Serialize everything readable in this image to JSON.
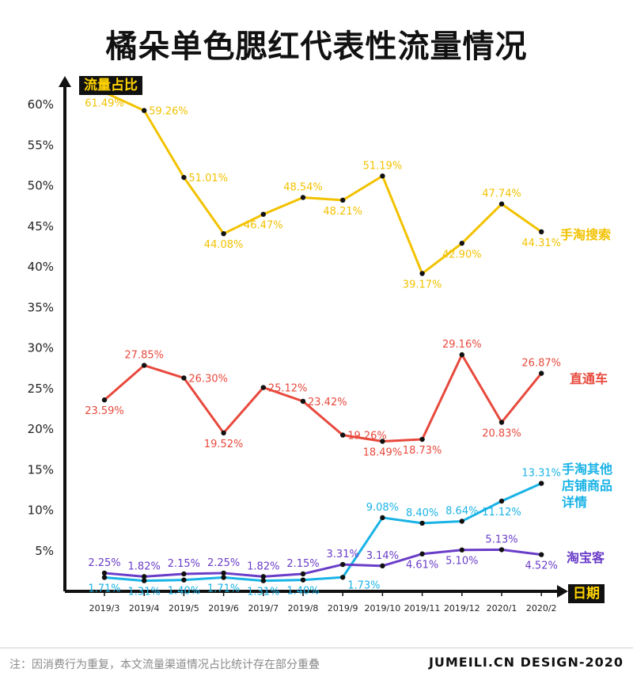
{
  "chart_data": {
    "type": "line",
    "title": "橘朵单色腮红代表性流量情况",
    "ylabel": "流量占比",
    "xlabel": "日期",
    "ylim": [
      0,
      63
    ],
    "yticks": [
      "5%",
      "10%",
      "15%",
      "20%",
      "25%",
      "30%",
      "35%",
      "40%",
      "45%",
      "50%",
      "55%",
      "60%"
    ],
    "ytick_values": [
      5,
      10,
      15,
      20,
      25,
      30,
      35,
      40,
      45,
      50,
      55,
      60
    ],
    "categories": [
      "2019/3",
      "2019/4",
      "2019/5",
      "2019/6",
      "2019/7",
      "2019/8",
      "2019/9",
      "2019/10",
      "2019/11",
      "2019/12",
      "2020/1",
      "2020/2"
    ],
    "series": [
      {
        "name": "手淘搜索",
        "color": "#f2c200",
        "values": [
          61.49,
          59.26,
          51.01,
          44.08,
          46.47,
          48.54,
          48.21,
          51.19,
          39.17,
          42.9,
          47.74,
          44.31
        ],
        "labels": [
          "61.49%",
          "59.26%",
          "51.01%",
          "44.08%",
          "46.47%",
          "48.54%",
          "48.21%",
          "51.19%",
          "39.17%",
          "42.90%",
          "47.74%",
          "44.31%"
        ],
        "label_pos": [
          "below",
          "right",
          "right",
          "below",
          "below",
          "above",
          "below",
          "above",
          "below",
          "below",
          "above",
          "below"
        ]
      },
      {
        "name": "直通车",
        "color": "#e8493d",
        "values": [
          23.59,
          27.85,
          26.3,
          19.52,
          25.12,
          23.42,
          19.26,
          18.49,
          18.73,
          29.16,
          20.83,
          26.87
        ],
        "labels": [
          "23.59%",
          "27.85%",
          "26.30%",
          "19.52%",
          "25.12%",
          "23.42%",
          "19.26%",
          "18.49%",
          "18.73%",
          "29.16%",
          "20.83%",
          "26.87%"
        ],
        "label_pos": [
          "below",
          "above",
          "right",
          "below",
          "right",
          "right",
          "right",
          "below",
          "below",
          "above",
          "below",
          "above"
        ]
      },
      {
        "name": "手淘其他店铺商品详情",
        "name_lines": [
          "手淘其他",
          "店铺商品",
          "详情"
        ],
        "color": "#1ab3e6",
        "values": [
          1.71,
          1.31,
          1.4,
          1.71,
          1.31,
          1.4,
          1.73,
          9.08,
          8.4,
          8.64,
          11.12,
          13.31
        ],
        "labels": [
          "1.71%",
          "1.31%",
          "1.40%",
          "1.71%",
          "1.31%",
          "1.40%",
          "1.73%",
          "9.08%",
          "8.40%",
          "8.64%",
          "11.12%",
          "13.31%"
        ],
        "label_pos": [
          "below",
          "below",
          "below",
          "below",
          "below",
          "below",
          "below-right",
          "above",
          "above",
          "above",
          "below",
          "above"
        ]
      },
      {
        "name": "淘宝客",
        "color": "#6a3dc8",
        "values": [
          2.25,
          1.82,
          2.15,
          2.25,
          1.82,
          2.15,
          3.31,
          3.14,
          4.61,
          5.1,
          5.13,
          4.52
        ],
        "labels": [
          "2.25%",
          "1.82%",
          "2.15%",
          "2.25%",
          "1.82%",
          "2.15%",
          "3.31%",
          "3.14%",
          "4.61%",
          "5.10%",
          "5.13%",
          "4.52%"
        ],
        "label_pos": [
          "above",
          "above",
          "above",
          "above",
          "above",
          "above",
          "above",
          "above",
          "below",
          "below",
          "above",
          "below"
        ]
      }
    ]
  },
  "footer": {
    "note": "注：因消费行为重复，本文流量渠道情况占比统计存在部分重叠",
    "brand": "JUMEILI.CN DESIGN-2020"
  }
}
